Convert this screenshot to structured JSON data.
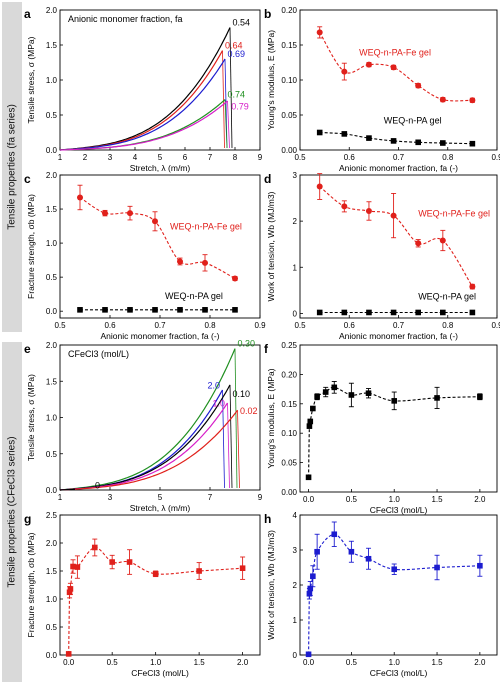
{
  "figure": {
    "side_labels": [
      {
        "text": "Tensile properties (fa series)"
      },
      {
        "text": "Tensile properties (CFeCl3 series)"
      }
    ]
  },
  "chart_data": [
    {
      "panel": "a",
      "type": "line",
      "title": "Anionic monomer fraction, fa",
      "xlabel": "Stretch, λ (m/m)",
      "ylabel": "Tensile stress, σ (MPa)",
      "xlim": [
        1,
        9
      ],
      "ylim": [
        0,
        2.0
      ],
      "xticks": [
        1,
        2,
        3,
        4,
        5,
        6,
        7,
        8,
        9
      ],
      "yticks": [
        0,
        0.5,
        1.0,
        1.5,
        2.0
      ],
      "series": [
        {
          "name": "0.54",
          "color": "#000000",
          "x_break": 7.8,
          "y_break": 1.75
        },
        {
          "name": "0.64",
          "color": "#e0201b",
          "x_break": 7.5,
          "y_break": 1.42
        },
        {
          "name": "0.69",
          "color": "#1c1ccf",
          "x_break": 7.6,
          "y_break": 1.3
        },
        {
          "name": "0.74",
          "color": "#1f8f1f",
          "x_break": 7.6,
          "y_break": 0.72
        },
        {
          "name": "0.79",
          "color": "#d61ec8",
          "x_break": 7.7,
          "y_break": 0.7
        }
      ]
    },
    {
      "panel": "b",
      "type": "scatter",
      "xlabel": "Anionic monomer fraction, fa (-)",
      "ylabel": "Young's modulus, E (MPa)",
      "xlim": [
        0.5,
        0.9
      ],
      "ylim": [
        0,
        0.2
      ],
      "xticks": [
        0.5,
        0.6,
        0.7,
        0.8,
        0.9
      ],
      "yticks": [
        0,
        0.05,
        0.1,
        0.15,
        0.2
      ],
      "series": [
        {
          "name": "WEQ-n-PA-Fe gel",
          "color": "#e0201b",
          "x": [
            0.54,
            0.59,
            0.64,
            0.69,
            0.74,
            0.79,
            0.85
          ],
          "y": [
            0.168,
            0.112,
            0.122,
            0.118,
            0.092,
            0.072,
            0.071
          ],
          "err": [
            0.008,
            0.012,
            0.003,
            0.003,
            0.003,
            0.003,
            0.003
          ]
        },
        {
          "name": "WEQ-n-PA gel",
          "color": "#000000",
          "x": [
            0.54,
            0.59,
            0.64,
            0.69,
            0.74,
            0.79,
            0.85
          ],
          "y": [
            0.025,
            0.023,
            0.017,
            0.013,
            0.011,
            0.01,
            0.009
          ],
          "err": [
            0.002,
            0.002,
            0.002,
            0.002,
            0.002,
            0.002,
            0.002
          ]
        }
      ]
    },
    {
      "panel": "c",
      "type": "scatter",
      "xlabel": "Anionic monomer fraction, fa (-)",
      "ylabel": "Fracture strength, σb (MPa)",
      "xlim": [
        0.5,
        0.9
      ],
      "ylim": [
        -0.1,
        2.0
      ],
      "xticks": [
        0.5,
        0.6,
        0.7,
        0.8,
        0.9
      ],
      "yticks": [
        0.0,
        0.5,
        1.0,
        1.5,
        2.0
      ],
      "series": [
        {
          "name": "WEQ-n-PA-Fe gel",
          "color": "#e0201b",
          "x": [
            0.54,
            0.59,
            0.64,
            0.69,
            0.74,
            0.79,
            0.85
          ],
          "y": [
            1.67,
            1.44,
            1.44,
            1.32,
            0.73,
            0.71,
            0.48
          ],
          "err": [
            0.18,
            0.04,
            0.1,
            0.14,
            0.05,
            0.12,
            0.03
          ]
        },
        {
          "name": "WEQ-n-PA gel",
          "color": "#000000",
          "x": [
            0.54,
            0.59,
            0.64,
            0.69,
            0.74,
            0.79,
            0.85
          ],
          "y": [
            0.02,
            0.02,
            0.02,
            0.02,
            0.02,
            0.02,
            0.02
          ],
          "err": [
            0,
            0,
            0,
            0,
            0,
            0,
            0
          ]
        }
      ]
    },
    {
      "panel": "d",
      "type": "scatter",
      "xlabel": "Anionic monomer fraction, fa (-)",
      "ylabel": "Work of tension, Wb (MJ/m3)",
      "xlim": [
        0.5,
        0.9
      ],
      "ylim": [
        -0.1,
        3.0
      ],
      "xticks": [
        0.5,
        0.6,
        0.7,
        0.8,
        0.9
      ],
      "yticks": [
        0,
        1,
        2,
        3
      ],
      "series": [
        {
          "name": "WEQ-n-PA-Fe gel",
          "color": "#e0201b",
          "x": [
            0.54,
            0.59,
            0.64,
            0.69,
            0.74,
            0.79,
            0.85
          ],
          "y": [
            2.75,
            2.32,
            2.22,
            2.12,
            1.52,
            1.58,
            0.58
          ],
          "err": [
            0.28,
            0.12,
            0.2,
            0.48,
            0.08,
            0.22,
            0.05
          ]
        },
        {
          "name": "WEQ-n-PA gel",
          "color": "#000000",
          "x": [
            0.54,
            0.59,
            0.64,
            0.69,
            0.74,
            0.79,
            0.85
          ],
          "y": [
            0.02,
            0.02,
            0.02,
            0.02,
            0.02,
            0.02,
            0.02
          ],
          "err": [
            0,
            0,
            0,
            0,
            0,
            0,
            0
          ]
        }
      ]
    },
    {
      "panel": "e",
      "type": "line",
      "title": "CFeCl3 (mol/L)",
      "xlabel": "Stretch, λ (m/m)",
      "ylabel": "Tensile stress, σ (MPa)",
      "xlim": [
        1,
        9
      ],
      "ylim": [
        0,
        2.0
      ],
      "xticks": [
        1,
        3,
        5,
        7,
        9
      ],
      "yticks": [
        0,
        0.5,
        1.0,
        1.5,
        2.0
      ],
      "series": [
        {
          "name": "0.30",
          "color": "#1f8f1f",
          "x_break": 8.0,
          "y_break": 1.95
        },
        {
          "name": "2.0",
          "color": "#1c1ccf",
          "x_break": 7.5,
          "y_break": 1.38
        },
        {
          "name": "0.10",
          "color": "#000000",
          "x_break": 7.8,
          "y_break": 1.45
        },
        {
          "name": "1.0",
          "color": "#d61ec8",
          "x_break": 7.7,
          "y_break": 1.2
        },
        {
          "name": "0.02",
          "color": "#e0201b",
          "x_break": 8.1,
          "y_break": 1.1
        },
        {
          "name": "0",
          "color": "#000000",
          "x_break": 1.6,
          "y_break": 0.01
        }
      ]
    },
    {
      "panel": "f",
      "type": "scatter",
      "xlabel": "CFeCl3 (mol/L)",
      "ylabel": "Young's modulus, E (MPa)",
      "xlim": [
        -0.1,
        2.2
      ],
      "ylim": [
        0,
        0.25
      ],
      "xticks": [
        0.0,
        0.5,
        1.0,
        1.5,
        2.0
      ],
      "yticks": [
        0.0,
        0.05,
        0.1,
        0.15,
        0.2,
        0.25
      ],
      "series": [
        {
          "name": "",
          "color": "#000000",
          "x": [
            0,
            0.01,
            0.02,
            0.05,
            0.1,
            0.2,
            0.3,
            0.5,
            0.7,
            1.0,
            1.5,
            2.0
          ],
          "y": [
            0.025,
            0.112,
            0.12,
            0.142,
            0.162,
            0.17,
            0.178,
            0.165,
            0.168,
            0.155,
            0.16,
            0.162
          ],
          "err": [
            0,
            0,
            0,
            0,
            0.005,
            0.008,
            0.01,
            0.02,
            0.008,
            0.015,
            0.018,
            0.005
          ]
        }
      ]
    },
    {
      "panel": "g",
      "type": "scatter",
      "xlabel": "CFeCl3 (mol/L)",
      "ylabel": "Fracture strength, σb (MPa)",
      "xlim": [
        -0.1,
        2.2
      ],
      "ylim": [
        0,
        2.5
      ],
      "xticks": [
        0.0,
        0.5,
        1.0,
        1.5,
        2.0
      ],
      "yticks": [
        0.0,
        0.5,
        1.0,
        1.5,
        2.0,
        2.5
      ],
      "series": [
        {
          "name": "",
          "color": "#e0201b",
          "x": [
            0,
            0.01,
            0.02,
            0.05,
            0.1,
            0.3,
            0.5,
            0.7,
            1.0,
            1.5,
            2.0
          ],
          "y": [
            0.02,
            1.12,
            1.18,
            1.58,
            1.57,
            1.92,
            1.66,
            1.66,
            1.45,
            1.5,
            1.55
          ],
          "err": [
            0,
            0.1,
            0.1,
            0.12,
            0.2,
            0.15,
            0.12,
            0.22,
            0.05,
            0.15,
            0.2
          ]
        }
      ]
    },
    {
      "panel": "h",
      "type": "scatter",
      "xlabel": "CFeCl3 (mol/L)",
      "ylabel": "Work of tension, Wb (MJ/m3)",
      "xlim": [
        -0.1,
        2.2
      ],
      "ylim": [
        0,
        4
      ],
      "xticks": [
        0.0,
        0.5,
        1.0,
        1.5,
        2.0
      ],
      "yticks": [
        0,
        1,
        2,
        3,
        4
      ],
      "series": [
        {
          "name": "",
          "color": "#1c1ccf",
          "x": [
            0,
            0.01,
            0.02,
            0.05,
            0.1,
            0.3,
            0.5,
            0.7,
            1.0,
            1.5,
            2.0
          ],
          "y": [
            0.02,
            1.75,
            1.9,
            2.25,
            2.95,
            3.45,
            2.95,
            2.75,
            2.45,
            2.5,
            2.55
          ],
          "err": [
            0,
            0.15,
            0.2,
            0.3,
            0.5,
            0.35,
            0.3,
            0.3,
            0.15,
            0.35,
            0.3
          ]
        }
      ]
    }
  ]
}
